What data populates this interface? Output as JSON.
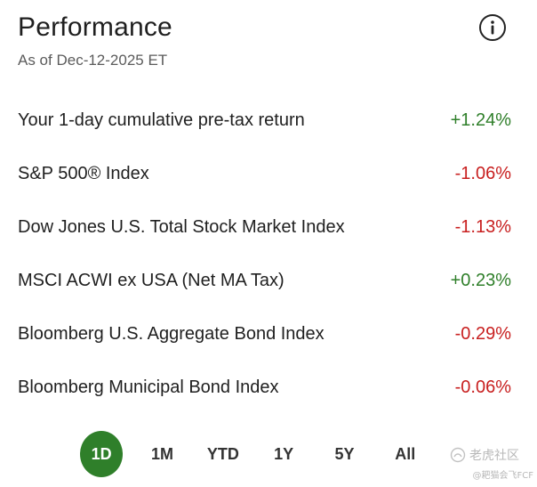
{
  "header": {
    "title": "Performance",
    "subtitle": "As of Dec-12-2025 ET",
    "info_icon": "info-icon"
  },
  "rows": [
    {
      "label": "Your 1-day cumulative pre-tax return",
      "value": "+1.24%",
      "sign": "positive"
    },
    {
      "label": "S&P 500® Index",
      "value": "-1.06%",
      "sign": "negative"
    },
    {
      "label": "Dow Jones U.S. Total Stock Market Index",
      "value": "-1.13%",
      "sign": "negative"
    },
    {
      "label": "MSCI ACWI ex USA (Net MA Tax)",
      "value": "+0.23%",
      "sign": "positive"
    },
    {
      "label": "Bloomberg U.S. Aggregate Bond Index",
      "value": "-0.29%",
      "sign": "negative"
    },
    {
      "label": "Bloomberg Municipal Bond Index",
      "value": "-0.06%",
      "sign": "negative"
    }
  ],
  "ranges": {
    "options": [
      "1D",
      "1M",
      "YTD",
      "1Y",
      "5Y",
      "All"
    ],
    "selected": "1D"
  },
  "watermark": {
    "line1": "老虎社区",
    "line2": "@耙猫会飞FCF"
  },
  "colors": {
    "positive": "#2f7f2a",
    "negative": "#c81f1f",
    "active_range": "#2f7f2a"
  }
}
